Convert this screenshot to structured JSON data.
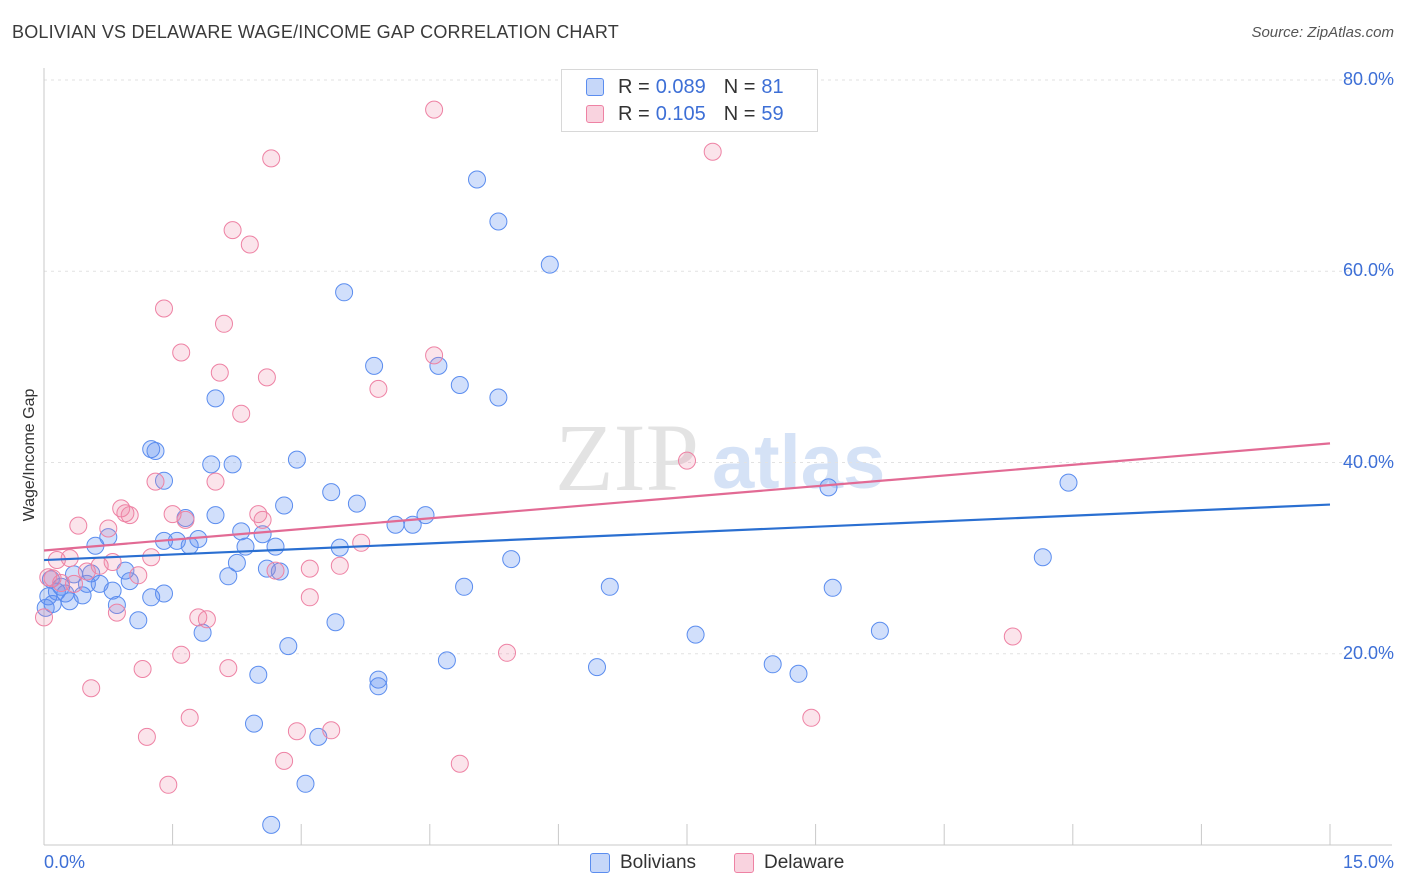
{
  "title": "BOLIVIAN VS DELAWARE WAGE/INCOME GAP CORRELATION CHART",
  "source": "Source: ZipAtlas.com",
  "watermark": {
    "zip": "ZIP",
    "atlas": "atlas"
  },
  "legend": {
    "r_label": "R =",
    "n_label": "N =",
    "rows": [
      {
        "r": "0.089",
        "n": "81",
        "color": "#5b8def"
      },
      {
        "r": "0.105",
        "n": "59",
        "color": "#ee82a4"
      }
    ]
  },
  "colors": {
    "blue": "#5b8def",
    "pink": "#ee82a4",
    "blue_line": "#2a6fd1",
    "pink_line": "#e26a94",
    "tick_text": "#3d6fd6"
  },
  "chart_data": {
    "type": "scatter",
    "title": "BOLIVIAN VS DELAWARE WAGE/INCOME GAP CORRELATION CHART",
    "xlabel": "",
    "ylabel": "Wage/Income Gap",
    "xlim": [
      0,
      15
    ],
    "ylim": [
      0,
      80
    ],
    "x_tick_labels": [
      "0.0%",
      "15.0%"
    ],
    "y_ticks": [
      20,
      40,
      60,
      80
    ],
    "y_tick_labels": [
      "20.0%",
      "40.0%",
      "60.0%",
      "80.0%"
    ],
    "grid": true,
    "series": [
      {
        "name": "Bolivians",
        "color": "#5b8def",
        "trend": {
          "x": [
            0,
            15
          ],
          "y": [
            29.8,
            35.6
          ]
        },
        "points": [
          [
            0.05,
            26
          ],
          [
            0.1,
            25.2
          ],
          [
            0.15,
            26.5
          ],
          [
            0.2,
            27
          ],
          [
            0.25,
            26.3
          ],
          [
            0.3,
            25.5
          ],
          [
            0.35,
            28.3
          ],
          [
            0.45,
            26.1
          ],
          [
            0.5,
            27.3
          ],
          [
            0.55,
            28.4
          ],
          [
            0.6,
            31.3
          ],
          [
            0.65,
            27.3
          ],
          [
            0.75,
            32.2
          ],
          [
            0.8,
            26.6
          ],
          [
            0.85,
            25.1
          ],
          [
            0.95,
            28.7
          ],
          [
            1.0,
            27.6
          ],
          [
            1.1,
            23.5
          ],
          [
            1.25,
            25.9
          ],
          [
            1.4,
            26.3
          ],
          [
            1.25,
            41.4
          ],
          [
            1.3,
            41.2
          ],
          [
            1.4,
            38.1
          ],
          [
            1.4,
            31.8
          ],
          [
            1.55,
            31.8
          ],
          [
            1.65,
            34.2
          ],
          [
            1.7,
            31.3
          ],
          [
            1.8,
            32.0
          ],
          [
            1.85,
            22.2
          ],
          [
            1.95,
            39.8
          ],
          [
            2.0,
            34.5
          ],
          [
            2.0,
            46.7
          ],
          [
            2.15,
            28.1
          ],
          [
            2.2,
            39.8
          ],
          [
            2.25,
            29.5
          ],
          [
            2.3,
            32.8
          ],
          [
            2.35,
            31.2
          ],
          [
            2.45,
            12.7
          ],
          [
            2.5,
            17.8
          ],
          [
            2.55,
            32.5
          ],
          [
            2.6,
            28.9
          ],
          [
            2.65,
            2.1
          ],
          [
            2.7,
            31.2
          ],
          [
            2.75,
            28.6
          ],
          [
            2.8,
            35.5
          ],
          [
            2.85,
            20.8
          ],
          [
            2.95,
            40.3
          ],
          [
            3.05,
            6.4
          ],
          [
            3.2,
            11.3
          ],
          [
            3.35,
            36.9
          ],
          [
            3.4,
            23.3
          ],
          [
            3.45,
            31.1
          ],
          [
            3.5,
            57.8
          ],
          [
            3.65,
            35.7
          ],
          [
            3.85,
            50.1
          ],
          [
            3.9,
            17.3
          ],
          [
            3.9,
            16.6
          ],
          [
            4.1,
            33.5
          ],
          [
            4.3,
            33.5
          ],
          [
            4.45,
            34.5
          ],
          [
            4.6,
            50.1
          ],
          [
            4.7,
            19.3
          ],
          [
            4.85,
            48.1
          ],
          [
            4.9,
            27.0
          ],
          [
            5.05,
            69.6
          ],
          [
            5.3,
            46.8
          ],
          [
            5.3,
            65.2
          ],
          [
            5.45,
            29.9
          ],
          [
            5.9,
            60.7
          ],
          [
            6.45,
            18.6
          ],
          [
            6.6,
            27.0
          ],
          [
            7.6,
            22.0
          ],
          [
            8.5,
            18.9
          ],
          [
            8.8,
            17.9
          ],
          [
            9.15,
            37.4
          ],
          [
            9.2,
            26.9
          ],
          [
            9.75,
            22.4
          ],
          [
            11.65,
            30.1
          ],
          [
            11.95,
            37.9
          ],
          [
            0.02,
            24.8
          ],
          [
            0.08,
            27.8
          ]
        ]
      },
      {
        "name": "Delaware",
        "color": "#ee82a4",
        "trend": {
          "x": [
            0,
            15
          ],
          "y": [
            30.8,
            42.0
          ]
        },
        "points": [
          [
            0.0,
            23.8
          ],
          [
            0.05,
            28.0
          ],
          [
            0.15,
            29.8
          ],
          [
            0.2,
            27.4
          ],
          [
            0.35,
            27.3
          ],
          [
            0.4,
            33.4
          ],
          [
            0.55,
            16.4
          ],
          [
            0.65,
            29.2
          ],
          [
            0.75,
            33.1
          ],
          [
            0.8,
            29.6
          ],
          [
            0.85,
            24.3
          ],
          [
            0.9,
            35.2
          ],
          [
            0.95,
            34.7
          ],
          [
            1.0,
            34.5
          ],
          [
            1.1,
            28.2
          ],
          [
            1.15,
            18.4
          ],
          [
            1.2,
            11.3
          ],
          [
            1.25,
            30.1
          ],
          [
            1.3,
            38.0
          ],
          [
            1.4,
            56.1
          ],
          [
            1.45,
            6.3
          ],
          [
            1.5,
            34.6
          ],
          [
            1.6,
            51.5
          ],
          [
            1.6,
            19.9
          ],
          [
            1.65,
            34.0
          ],
          [
            1.7,
            13.3
          ],
          [
            1.8,
            23.8
          ],
          [
            1.9,
            23.6
          ],
          [
            2.0,
            38.0
          ],
          [
            2.05,
            49.4
          ],
          [
            2.1,
            54.5
          ],
          [
            2.15,
            18.5
          ],
          [
            2.2,
            64.3
          ],
          [
            2.3,
            45.1
          ],
          [
            2.4,
            62.8
          ],
          [
            2.5,
            34.6
          ],
          [
            2.55,
            34.0
          ],
          [
            2.6,
            48.9
          ],
          [
            2.65,
            71.8
          ],
          [
            2.7,
            28.7
          ],
          [
            2.8,
            8.8
          ],
          [
            2.95,
            11.9
          ],
          [
            3.1,
            25.9
          ],
          [
            3.1,
            28.9
          ],
          [
            3.35,
            12.0
          ],
          [
            3.45,
            29.2
          ],
          [
            3.7,
            31.6
          ],
          [
            3.9,
            47.7
          ],
          [
            4.55,
            76.9
          ],
          [
            4.55,
            51.2
          ],
          [
            4.85,
            8.5
          ],
          [
            5.4,
            20.1
          ],
          [
            7.5,
            40.2
          ],
          [
            7.8,
            72.5
          ],
          [
            8.95,
            13.3
          ],
          [
            11.3,
            21.8
          ],
          [
            0.1,
            27.9
          ],
          [
            0.3,
            30.0
          ],
          [
            0.5,
            28.6
          ]
        ]
      }
    ]
  },
  "bottom_legend": {
    "labels": [
      "Bolivians",
      "Delaware"
    ]
  }
}
